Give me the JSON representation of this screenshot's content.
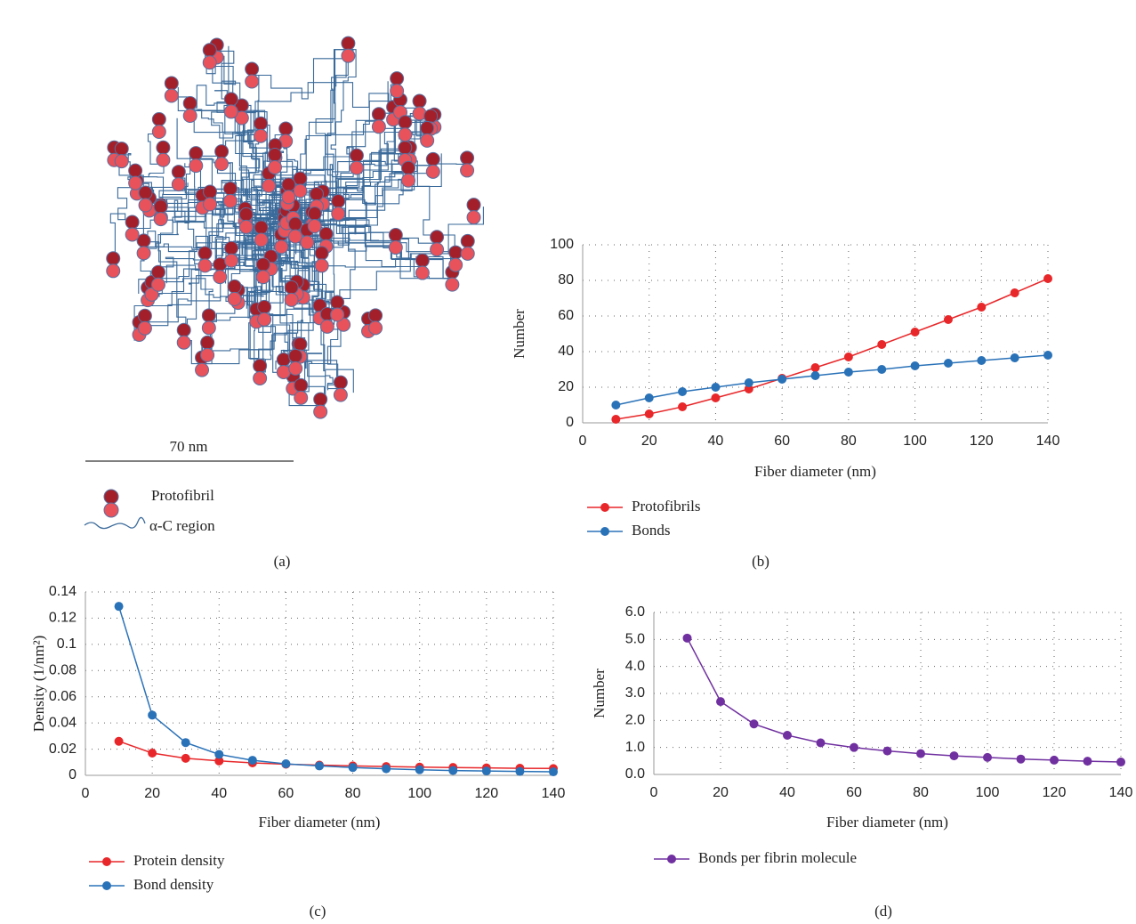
{
  "diagram": {
    "scale_label": "70 nm",
    "legend": [
      "Protofibril",
      "α-C region"
    ],
    "caption": "(a)"
  },
  "chart_data": [
    {
      "type": "line",
      "caption": "(b)",
      "xlabel": "Fiber diameter (nm)",
      "ylabel": "Number",
      "x": [
        10,
        20,
        30,
        40,
        50,
        60,
        70,
        80,
        90,
        100,
        110,
        120,
        130,
        140
      ],
      "series": [
        {
          "name": "Protofibrils",
          "color": "#e8272a",
          "values": [
            2,
            5,
            9,
            14,
            19,
            25,
            31,
            37,
            44,
            51,
            58,
            65,
            73,
            81
          ]
        },
        {
          "name": "Bonds",
          "color": "#2a72b8",
          "values": [
            10,
            14,
            17.5,
            20,
            22.5,
            24.5,
            26.5,
            28.5,
            30,
            32,
            33.5,
            35,
            36.5,
            38
          ]
        }
      ],
      "xlim": [
        0,
        140
      ],
      "xticks": [
        0,
        20,
        40,
        60,
        80,
        100,
        120,
        140
      ],
      "ylim": [
        0,
        100
      ],
      "yticks": [
        0,
        20,
        40,
        60,
        80,
        100
      ],
      "grid": true,
      "legend": "below"
    },
    {
      "type": "line",
      "caption": "(c)",
      "xlabel": "Fiber diameter (nm)",
      "ylabel": "Density (1/nm²)",
      "x": [
        10,
        20,
        30,
        40,
        50,
        60,
        70,
        80,
        90,
        100,
        110,
        120,
        130,
        140
      ],
      "series": [
        {
          "name": "Protein density",
          "color": "#e8272a",
          "values": [
            0.026,
            0.017,
            0.013,
            0.011,
            0.0095,
            0.0085,
            0.0078,
            0.0072,
            0.0067,
            0.0063,
            0.006,
            0.0057,
            0.0054,
            0.0052
          ]
        },
        {
          "name": "Bond density",
          "color": "#2a72b8",
          "values": [
            0.129,
            0.046,
            0.025,
            0.016,
            0.0115,
            0.0088,
            0.0072,
            0.006,
            0.005,
            0.0043,
            0.0037,
            0.0033,
            0.003,
            0.0027
          ]
        }
      ],
      "xlim": [
        0,
        140
      ],
      "xticks": [
        0,
        20,
        40,
        60,
        80,
        100,
        120,
        140
      ],
      "ylim": [
        0,
        0.14
      ],
      "yticks": [
        0,
        0.02,
        0.04,
        0.06,
        0.08,
        0.1,
        0.12,
        0.14
      ],
      "grid": true,
      "legend": "below"
    },
    {
      "type": "line",
      "caption": "(d)",
      "xlabel": "Fiber diameter (nm)",
      "ylabel": "Number",
      "x": [
        10,
        20,
        30,
        40,
        50,
        60,
        70,
        80,
        90,
        100,
        110,
        120,
        130,
        140
      ],
      "series": [
        {
          "name": "Bonds per fibrin molecule",
          "color": "#7030a0",
          "values": [
            5.05,
            2.7,
            1.87,
            1.45,
            1.17,
            1.0,
            0.87,
            0.77,
            0.69,
            0.63,
            0.57,
            0.53,
            0.49,
            0.46
          ]
        }
      ],
      "xlim": [
        0,
        140
      ],
      "xticks": [
        0,
        20,
        40,
        60,
        80,
        100,
        120,
        140
      ],
      "ylim": [
        0,
        6
      ],
      "yticks": [
        {
          "value": 0,
          "label": "0.0"
        },
        {
          "value": 1,
          "label": "1.0"
        },
        {
          "value": 2,
          "label": "2.0"
        },
        {
          "value": 3,
          "label": "3.0"
        },
        {
          "value": 4,
          "label": "4.0"
        },
        {
          "value": 5,
          "label": "5.0"
        },
        {
          "value": 6,
          "label": "6.0"
        }
      ],
      "grid": true,
      "legend": "below"
    }
  ]
}
